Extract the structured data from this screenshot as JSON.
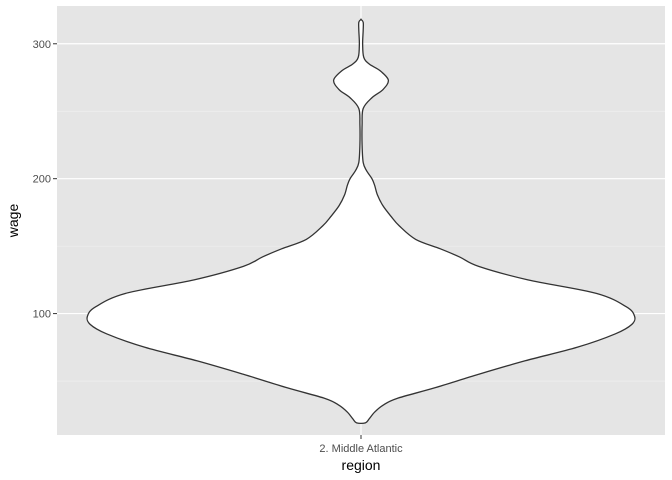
{
  "chart_data": {
    "type": "violin",
    "xlabel": "region",
    "ylabel": "wage",
    "categories": [
      "2. Middle Atlantic"
    ],
    "ylim": [
      10,
      328
    ],
    "y_ticks": [
      100,
      200,
      300
    ],
    "y_minor_ticks": [
      50,
      150,
      250
    ],
    "grid": true,
    "panel_background": "#e5e5e5",
    "violin": {
      "category": "2. Middle Atlantic",
      "fill": "#ffffff",
      "stroke": "#333333",
      "min": 19,
      "max": 318,
      "density_profile": [
        {
          "y": 19,
          "w": 0.016
        },
        {
          "y": 22,
          "w": 0.03
        },
        {
          "y": 27,
          "w": 0.05
        },
        {
          "y": 32,
          "w": 0.08
        },
        {
          "y": 37,
          "w": 0.13
        },
        {
          "y": 45,
          "w": 0.27
        },
        {
          "y": 55,
          "w": 0.43
        },
        {
          "y": 65,
          "w": 0.6
        },
        {
          "y": 75,
          "w": 0.79
        },
        {
          "y": 85,
          "w": 0.93
        },
        {
          "y": 92,
          "w": 0.99
        },
        {
          "y": 98,
          "w": 1.0
        },
        {
          "y": 105,
          "w": 0.97
        },
        {
          "y": 115,
          "w": 0.86
        },
        {
          "y": 125,
          "w": 0.61
        },
        {
          "y": 135,
          "w": 0.43
        },
        {
          "y": 142,
          "w": 0.36
        },
        {
          "y": 148,
          "w": 0.29
        },
        {
          "y": 155,
          "w": 0.2
        },
        {
          "y": 165,
          "w": 0.14
        },
        {
          "y": 172,
          "w": 0.11
        },
        {
          "y": 180,
          "w": 0.08
        },
        {
          "y": 188,
          "w": 0.06
        },
        {
          "y": 195,
          "w": 0.05
        },
        {
          "y": 200,
          "w": 0.04
        },
        {
          "y": 206,
          "w": 0.02
        },
        {
          "y": 212,
          "w": 0.008
        },
        {
          "y": 225,
          "w": 0.004
        },
        {
          "y": 240,
          "w": 0.004
        },
        {
          "y": 252,
          "w": 0.008
        },
        {
          "y": 260,
          "w": 0.04
        },
        {
          "y": 266,
          "w": 0.08
        },
        {
          "y": 273,
          "w": 0.1
        },
        {
          "y": 280,
          "w": 0.07
        },
        {
          "y": 285,
          "w": 0.03
        },
        {
          "y": 290,
          "w": 0.01
        },
        {
          "y": 300,
          "w": 0.006
        },
        {
          "y": 310,
          "w": 0.008
        },
        {
          "y": 316,
          "w": 0.008
        },
        {
          "y": 318,
          "w": 0.0
        }
      ]
    }
  }
}
